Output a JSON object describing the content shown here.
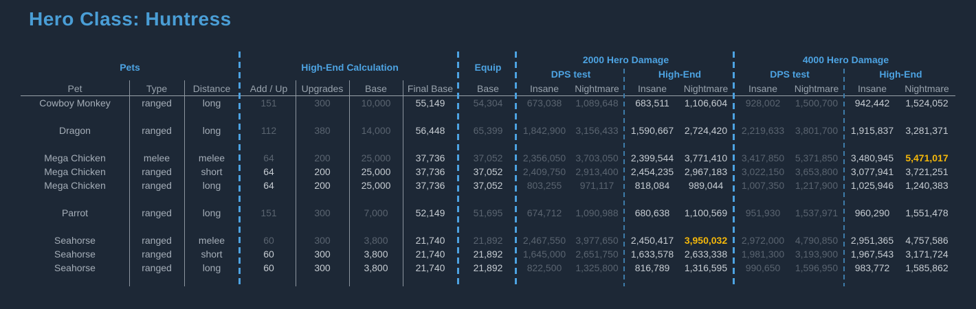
{
  "title": "Hero Class: Huntress",
  "groups": {
    "pets": "Pets",
    "high_end_calculation": "High-End Calculation",
    "equip": "Equip",
    "dmg_2000": "2000 Hero Damage",
    "dps_test_2000": "DPS test",
    "high_end_2000": "High-End",
    "dmg_4000": "4000 Hero Damage",
    "dps_test_4000": "DPS test",
    "high_end_4000": "High-End"
  },
  "columns": [
    "Pet",
    "Type",
    "Distance",
    "Add / Up",
    "Upgrades",
    "Base",
    "Final Base",
    "Base",
    "Insane",
    "Nightmare",
    "Insane",
    "Nightmare",
    "Insane",
    "Nightmare",
    "Insane",
    "Nightmare"
  ],
  "rows": [
    {
      "cells": [
        "Cowboy Monkey",
        "ranged",
        "long",
        "151",
        "300",
        "10,000",
        "55,149",
        "54,304",
        "673,038",
        "1,089,648",
        "683,511",
        "1,106,604",
        "928,002",
        "1,500,700",
        "942,442",
        "1,524,052"
      ],
      "styles": "tttdddbdddbbddbb"
    },
    {
      "spacer": true
    },
    {
      "cells": [
        "Dragon",
        "ranged",
        "long",
        "112",
        "380",
        "14,000",
        "56,448",
        "65,399",
        "1,842,900",
        "3,156,433",
        "1,590,667",
        "2,724,420",
        "2,219,633",
        "3,801,700",
        "1,915,837",
        "3,281,371"
      ],
      "styles": "tttdddbdddbbddbb"
    },
    {
      "spacer": true
    },
    {
      "cells": [
        "Mega Chicken",
        "melee",
        "melee",
        "64",
        "200",
        "25,000",
        "37,736",
        "37,052",
        "2,356,050",
        "3,703,050",
        "2,399,544",
        "3,771,410",
        "3,417,850",
        "5,371,850",
        "3,480,945",
        "5,471,017"
      ],
      "styles": "tttdddbdddbbddbg"
    },
    {
      "cells": [
        "Mega Chicken",
        "ranged",
        "short",
        "64",
        "200",
        "25,000",
        "37,736",
        "37,052",
        "2,409,750",
        "2,913,400",
        "2,454,235",
        "2,967,183",
        "3,022,150",
        "3,653,800",
        "3,077,941",
        "3,721,251"
      ],
      "styles": "tttbbbbbddbbddbb"
    },
    {
      "cells": [
        "Mega Chicken",
        "ranged",
        "long",
        "64",
        "200",
        "25,000",
        "37,736",
        "37,052",
        "803,255",
        "971,117",
        "818,084",
        "989,044",
        "1,007,350",
        "1,217,900",
        "1,025,946",
        "1,240,383"
      ],
      "styles": "tttbbbbbddbbddbb"
    },
    {
      "spacer": true
    },
    {
      "cells": [
        "Parrot",
        "ranged",
        "long",
        "151",
        "300",
        "7,000",
        "52,149",
        "51,695",
        "674,712",
        "1,090,988",
        "680,638",
        "1,100,569",
        "951,930",
        "1,537,971",
        "960,290",
        "1,551,478"
      ],
      "styles": "tttdddbdddbbddbb"
    },
    {
      "spacer": true
    },
    {
      "cells": [
        "Seahorse",
        "ranged",
        "melee",
        "60",
        "300",
        "3,800",
        "21,740",
        "21,892",
        "2,467,550",
        "3,977,650",
        "2,450,417",
        "3,950,032",
        "2,972,000",
        "4,790,850",
        "2,951,365",
        "4,757,586"
      ],
      "styles": "tttdddbdddbgddbb"
    },
    {
      "cells": [
        "Seahorse",
        "ranged",
        "short",
        "60",
        "300",
        "3,800",
        "21,740",
        "21,892",
        "1,645,000",
        "2,651,750",
        "1,633,578",
        "2,633,338",
        "1,981,300",
        "3,193,900",
        "1,967,543",
        "3,171,724"
      ],
      "styles": "tttbbbbbddbbddbb"
    },
    {
      "cells": [
        "Seahorse",
        "ranged",
        "long",
        "60",
        "300",
        "3,800",
        "21,740",
        "21,892",
        "822,500",
        "1,325,800",
        "816,789",
        "1,316,595",
        "990,650",
        "1,596,950",
        "983,772",
        "1,585,862"
      ],
      "styles": "tttbbbbbddbbddbb"
    }
  ],
  "colors": {
    "background": "#1d2836",
    "title_blue": "#4a9ed6",
    "group_label_blue": "#4da3e2",
    "header_text": "#99a3ad",
    "pet_text": "#a5aeb8",
    "dim_value": "#5a6470",
    "bright_value": "#c6ccd2",
    "highlight_gold": "#f5b80a",
    "gridline": "#8d96a0"
  }
}
